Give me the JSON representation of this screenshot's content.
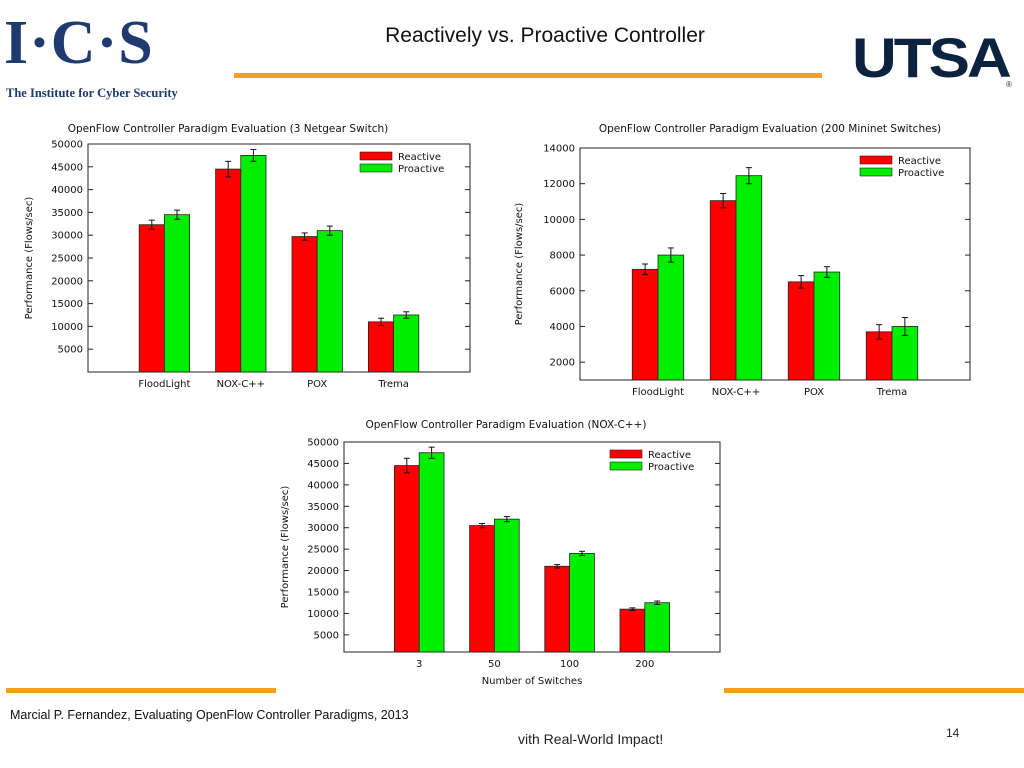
{
  "header": {
    "ics_logo": "I·C·S",
    "ics_subtitle": "The Institute for Cyber Security",
    "title": "Reactively  vs. Proactive Controller",
    "utsa_logo": "UTSA"
  },
  "footer": {
    "citation": "Marcial P. Fernandez, Evaluating OpenFlow Controller Paradigms, 2013",
    "tagline": "vith Real-World Impact!",
    "page_number": "14"
  },
  "colors": {
    "accent": "#f5a018",
    "reactive": "#ff0000",
    "proactive": "#00ee00",
    "navy": "#1f3a6e"
  },
  "chart_data": [
    {
      "type": "bar",
      "title": "OpenFlow Controller Paradigm Evaluation (3 Netgear Switch)",
      "xlabel": "",
      "ylabel": "Performance (Flows/sec)",
      "ylim": [
        0,
        50000
      ],
      "yticks": [
        5000,
        10000,
        15000,
        20000,
        25000,
        30000,
        35000,
        40000,
        45000,
        50000
      ],
      "categories": [
        "FloodLight",
        "NOX-C++",
        "POX",
        "Trema"
      ],
      "series": [
        {
          "name": "Reactive",
          "values": [
            32300,
            44500,
            29700,
            11000
          ],
          "errors": [
            1000,
            1700,
            800,
            800
          ]
        },
        {
          "name": "Proactive",
          "values": [
            34500,
            47500,
            31000,
            12500
          ],
          "errors": [
            1000,
            1300,
            1000,
            700
          ]
        }
      ],
      "legend": "top-right"
    },
    {
      "type": "bar",
      "title": "OpenFlow Controller Paradigm Evaluation (200 Mininet Switches)",
      "xlabel": "",
      "ylabel": "Performance (Flows/sec)",
      "ylim": [
        1000,
        14000
      ],
      "yticks": [
        2000,
        4000,
        6000,
        8000,
        10000,
        12000,
        14000
      ],
      "categories": [
        "FloodLight",
        "NOX-C++",
        "POX",
        "Trema"
      ],
      "series": [
        {
          "name": "Reactive",
          "values": [
            7200,
            11050,
            6500,
            3700
          ],
          "errors": [
            300,
            400,
            350,
            400
          ]
        },
        {
          "name": "Proactive",
          "values": [
            8000,
            12450,
            7050,
            4000
          ],
          "errors": [
            400,
            450,
            300,
            500
          ]
        }
      ],
      "legend": "top-right"
    },
    {
      "type": "bar",
      "title": "OpenFlow Controller Paradigm Evaluation (NOX-C++)",
      "xlabel": "Number of Switches",
      "ylabel": "Performance (Flows/sec)",
      "ylim": [
        1000,
        50000
      ],
      "yticks": [
        5000,
        10000,
        15000,
        20000,
        25000,
        30000,
        35000,
        40000,
        45000,
        50000
      ],
      "categories": [
        "3",
        "50",
        "100",
        "200"
      ],
      "series": [
        {
          "name": "Reactive",
          "values": [
            44500,
            30500,
            21000,
            11000
          ],
          "errors": [
            1700,
            500,
            400,
            300
          ]
        },
        {
          "name": "Proactive",
          "values": [
            47500,
            32000,
            24000,
            12500
          ],
          "errors": [
            1300,
            600,
            500,
            400
          ]
        }
      ],
      "legend": "top-right"
    }
  ]
}
